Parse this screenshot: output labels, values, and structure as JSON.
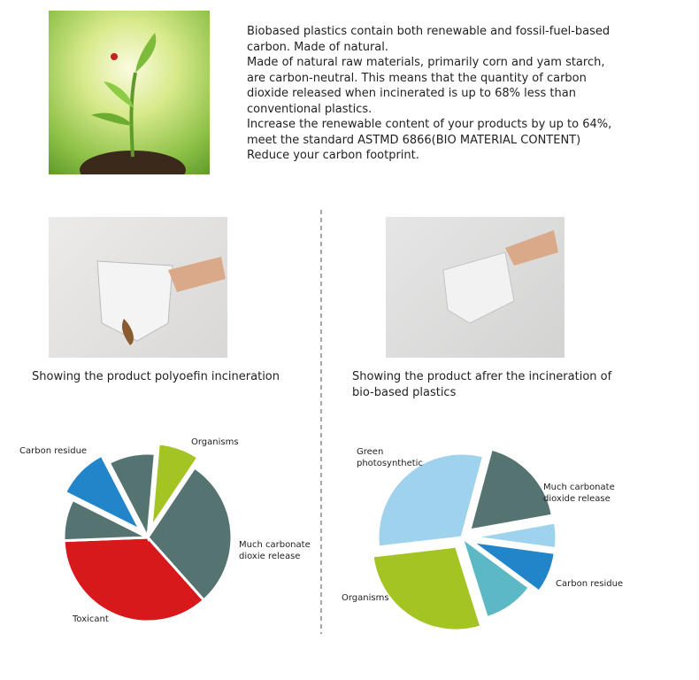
{
  "document": {
    "intro": [
      "Biobased plastics contain both renewable and fossil-fuel-based",
      "carbon. Made of natural.",
      "Made of natural raw materials, primarily corn and yam starch,",
      "are carbon-neutral. This means that the quantity of carbon",
      "dioxide released when incinerated is up to 68% less than",
      "conventional plastics.",
      "Increase the renewable content of your products by up to 64%,",
      "meet the standard ASTMD 6866(BIO MATERIAL CONTENT)",
      "Reduce your carbon footprint."
    ],
    "captions": [
      [
        "Showing the product polyoefin incineration"
      ],
      [
        "Showing the product afrer the incineration of",
        "bio-based plastics"
      ]
    ]
  },
  "chart_data": [
    {
      "type": "pie",
      "categories": [
        "Organisms",
        "Much carbonate dioxie release",
        "Toxicant",
        null,
        "Carbon residue",
        null
      ],
      "values": [
        8,
        29,
        36,
        8,
        10,
        9
      ],
      "colors": [
        "#a4c424",
        "#557370",
        "#d7191c",
        "#557370",
        "#2385c9",
        "#557370"
      ],
      "explode": [
        true,
        false,
        false,
        false,
        true,
        false
      ]
    },
    {
      "type": "pie",
      "categories": [
        "Much carbonate dioxide release",
        null,
        "Carbon residue",
        null,
        "Organisms",
        "Green photosynthetic"
      ],
      "values": [
        18,
        5,
        8,
        10,
        28,
        31
      ],
      "colors": [
        "#557370",
        "#9fd2ec",
        "#2385c9",
        "#5bb8c4",
        "#a4c424",
        "#9fd2ec"
      ],
      "explode": [
        true,
        true,
        true,
        false,
        true,
        false
      ]
    }
  ]
}
